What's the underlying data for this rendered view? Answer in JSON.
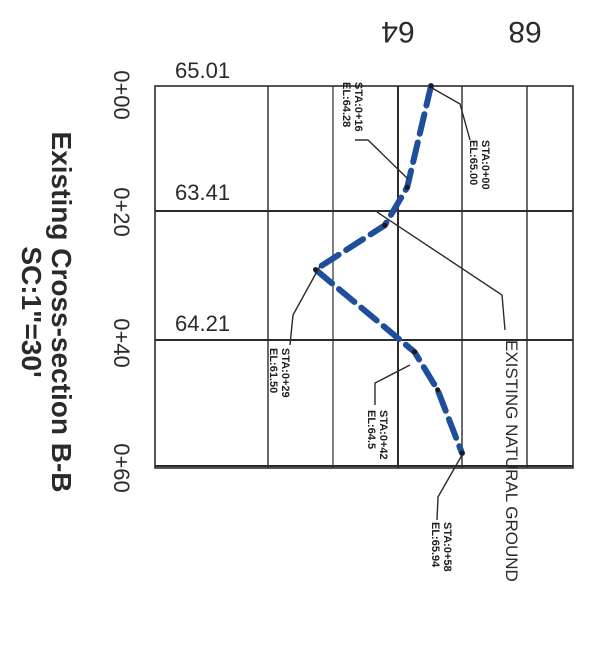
{
  "title": "Existing Cross-section B-B",
  "scale": "SC:1\"=30'",
  "elevation_axis": [
    "68",
    "64"
  ],
  "station_axis": [
    "0+00",
    "0+20",
    "0+40",
    "0+60"
  ],
  "grid_elevations": [
    "65.01",
    "63.41",
    "64.21"
  ],
  "ground_label": "EXISTING NATURAL GROUND",
  "line_color": "#1f4e9a",
  "chart_data": {
    "type": "line",
    "series": [
      {
        "name": "EXISTING NATURAL GROUND",
        "stations": [
          0,
          16,
          22,
          29,
          42,
          48,
          58
        ],
        "elevations": [
          65.0,
          64.28,
          63.6,
          61.5,
          64.5,
          65.2,
          65.94
        ]
      }
    ]
  },
  "annotations": [
    {
      "id": "ann1",
      "sta": "STA:0+16",
      "el": "EL:64.28"
    },
    {
      "id": "ann2",
      "sta": "STA:0+00",
      "el": "EL:65.00"
    },
    {
      "id": "ann3",
      "sta": "STA:0+29",
      "el": "EL:61.50"
    },
    {
      "id": "ann4",
      "sta": "STA:0+42",
      "el": "EL:64.5"
    },
    {
      "id": "ann5",
      "sta": "STA:0+58",
      "el": "EL:65.94"
    }
  ]
}
